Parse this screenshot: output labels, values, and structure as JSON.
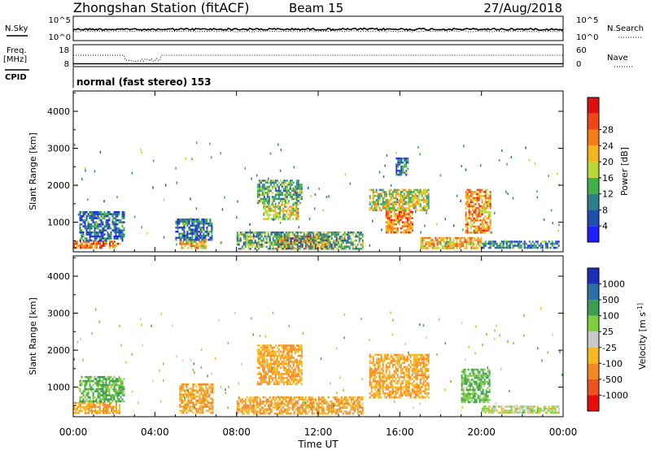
{
  "header": {
    "title": "Zhongshan Station (fitACF)",
    "beam": "Beam 15",
    "date": "27/Aug/2018"
  },
  "strip_labels": {
    "nsky": "N.Sky",
    "nsky_tick_top": "10^5",
    "nsky_tick_bottom": "10^0",
    "nsearch": "N.Search",
    "nsearch_tick_top": "10^5",
    "nsearch_tick_bottom": "10^0",
    "freq": "Freq.",
    "freq_unit": "[MHz]",
    "freq_tick_top": "18",
    "freq_tick_bottom": "8",
    "nave": "Nave",
    "nave_tick_top": "60",
    "nave_tick_bottom": "0",
    "cpid": "CPID",
    "cpid_text": "normal (fast stereo) 153"
  },
  "colors": {
    "power_scale": [
      "#1e1eff",
      "#1f4fae",
      "#2e7f8a",
      "#42b04a",
      "#b8d935",
      "#f5b61c",
      "#f77e14",
      "#f0461a",
      "#e01010"
    ],
    "velocity_scale": [
      "#e60d0d",
      "#f0521e",
      "#f58820",
      "#f5b820",
      "#c9c9c9",
      "#7fcf3c",
      "#3d9e52",
      "#2c6fa6",
      "#1a2fb8"
    ]
  },
  "chart_data": [
    {
      "type": "heatmap",
      "name": "power",
      "ylabel": "Slant Range [km]",
      "y_ticks": [
        "1000",
        "2000",
        "3000",
        "4000"
      ],
      "ylim": [
        200,
        4550
      ],
      "colorbar_label": "Power [dB]",
      "colorbar_ticks": [
        "4",
        "8",
        "12",
        "16",
        "20",
        "24",
        "28"
      ],
      "colorbar_range": [
        0,
        32
      ],
      "echo_regions": [
        {
          "t": [
            0.0,
            2.3
          ],
          "r": [
            300,
            500
          ],
          "v": 24
        },
        {
          "t": [
            0.3,
            2.5
          ],
          "r": [
            500,
            1300
          ],
          "v": 8
        },
        {
          "t": [
            5.2,
            6.5
          ],
          "r": [
            300,
            550
          ],
          "v": 20
        },
        {
          "t": [
            5.0,
            6.8
          ],
          "r": [
            500,
            1100
          ],
          "v": 8
        },
        {
          "t": [
            9.0,
            11.2
          ],
          "r": [
            1500,
            2150
          ],
          "v": 12
        },
        {
          "t": [
            9.3,
            11.0
          ],
          "r": [
            1100,
            1500
          ],
          "v": 16
        },
        {
          "t": [
            10.0,
            12.5
          ],
          "r": [
            300,
            650
          ],
          "v": 26
        },
        {
          "t": [
            8.0,
            14.2
          ],
          "r": [
            300,
            750
          ],
          "v": 12
        },
        {
          "t": [
            14.5,
            17.4
          ],
          "r": [
            1300,
            1900
          ],
          "v": 16
        },
        {
          "t": [
            15.3,
            16.6
          ],
          "r": [
            700,
            1300
          ],
          "v": 24
        },
        {
          "t": [
            15.8,
            16.4
          ],
          "r": [
            2300,
            2750
          ],
          "v": 8
        },
        {
          "t": [
            17.0,
            20.0
          ],
          "r": [
            300,
            600
          ],
          "v": 20
        },
        {
          "t": [
            19.2,
            20.4
          ],
          "r": [
            700,
            1900
          ],
          "v": 22
        },
        {
          "t": [
            20.0,
            23.8
          ],
          "r": [
            300,
            500
          ],
          "v": 8
        }
      ]
    },
    {
      "type": "heatmap",
      "name": "velocity",
      "ylabel": "Slant Range [km]",
      "y_ticks": [
        "1000",
        "2000",
        "3000",
        "4000"
      ],
      "ylim": [
        200,
        4550
      ],
      "colorbar_label": "Velocity [m s^-1]",
      "colorbar_ticks": [
        "-1000",
        "-500",
        "-100",
        "-25",
        "25",
        "100",
        "500",
        "1000"
      ],
      "echo_regions": [
        {
          "t": [
            0.0,
            2.3
          ],
          "r": [
            300,
            600
          ],
          "v": -100
        },
        {
          "t": [
            0.3,
            2.5
          ],
          "r": [
            600,
            1300
          ],
          "v": 100
        },
        {
          "t": [
            5.2,
            6.8
          ],
          "r": [
            300,
            1100
          ],
          "v": -100
        },
        {
          "t": [
            9.0,
            11.2
          ],
          "r": [
            1100,
            2150
          ],
          "v": -100
        },
        {
          "t": [
            8.0,
            14.2
          ],
          "r": [
            300,
            750
          ],
          "v": -100
        },
        {
          "t": [
            14.5,
            17.4
          ],
          "r": [
            700,
            1900
          ],
          "v": -100
        },
        {
          "t": [
            19.0,
            20.4
          ],
          "r": [
            600,
            1500
          ],
          "v": 100
        },
        {
          "t": [
            20.0,
            23.8
          ],
          "r": [
            300,
            500
          ],
          "v": 25
        }
      ]
    }
  ],
  "x_axis": {
    "ticks": [
      "00:00",
      "04:00",
      "08:00",
      "12:00",
      "16:00",
      "20:00",
      "00:00"
    ],
    "tick_hours": [
      0,
      4,
      8,
      12,
      16,
      20,
      24
    ],
    "xlabel": "Time UT",
    "range_hours": [
      0,
      24
    ]
  }
}
